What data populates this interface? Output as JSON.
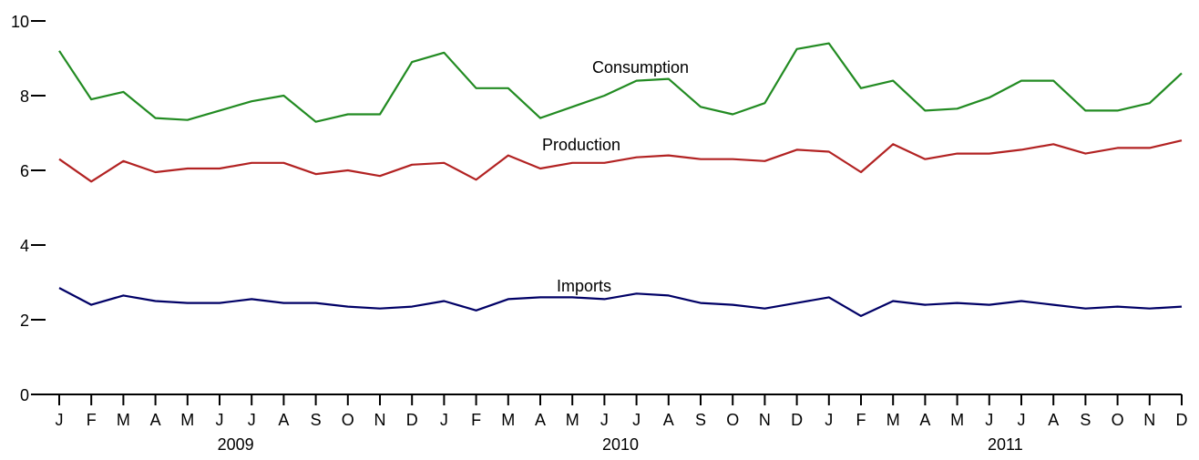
{
  "chart_data": {
    "type": "line",
    "title": "",
    "xlabel": "",
    "ylabel": "",
    "ylim": [
      0,
      10
    ],
    "yticks": [
      "0",
      "2",
      "4",
      "6",
      "8",
      "10"
    ],
    "grid": false,
    "legend": "none",
    "x": [
      "J",
      "F",
      "M",
      "A",
      "M",
      "J",
      "J",
      "A",
      "S",
      "O",
      "N",
      "D",
      "J",
      "F",
      "M",
      "A",
      "M",
      "J",
      "J",
      "A",
      "S",
      "O",
      "N",
      "D",
      "J",
      "F",
      "M",
      "A",
      "M",
      "J",
      "J",
      "A",
      "S",
      "O",
      "N",
      "D"
    ],
    "years": [
      "2009",
      "2010",
      "2011"
    ],
    "series": [
      {
        "name": "Consumption",
        "color": "#228B22",
        "values": [
          9.2,
          7.9,
          8.1,
          7.4,
          7.35,
          7.6,
          7.85,
          8.0,
          7.3,
          7.5,
          7.5,
          8.9,
          9.15,
          8.2,
          8.2,
          7.4,
          7.7,
          8.0,
          8.4,
          8.45,
          7.7,
          7.5,
          7.8,
          9.25,
          9.4,
          8.2,
          8.4,
          7.6,
          7.65,
          7.95,
          8.4,
          8.4,
          7.6,
          7.6,
          7.8,
          8.6
        ]
      },
      {
        "name": "Production",
        "color": "#B22222",
        "values": [
          6.3,
          5.7,
          6.25,
          5.95,
          6.05,
          6.05,
          6.2,
          6.2,
          5.9,
          6.0,
          5.85,
          6.15,
          6.2,
          5.75,
          6.4,
          6.05,
          6.2,
          6.2,
          6.35,
          6.4,
          6.3,
          6.3,
          6.25,
          6.55,
          6.5,
          5.95,
          6.7,
          6.3,
          6.45,
          6.45,
          6.55,
          6.7,
          6.45,
          6.6,
          6.6,
          6.8
        ]
      },
      {
        "name": "Imports",
        "color": "#000066",
        "values": [
          2.85,
          2.4,
          2.65,
          2.5,
          2.45,
          2.45,
          2.55,
          2.45,
          2.45,
          2.35,
          2.3,
          2.35,
          2.5,
          2.25,
          2.55,
          2.6,
          2.6,
          2.55,
          2.7,
          2.65,
          2.45,
          2.4,
          2.3,
          2.45,
          2.6,
          2.1,
          2.5,
          2.4,
          2.45,
          2.4,
          2.5,
          2.4,
          2.3,
          2.35,
          2.3,
          2.35
        ]
      }
    ]
  }
}
